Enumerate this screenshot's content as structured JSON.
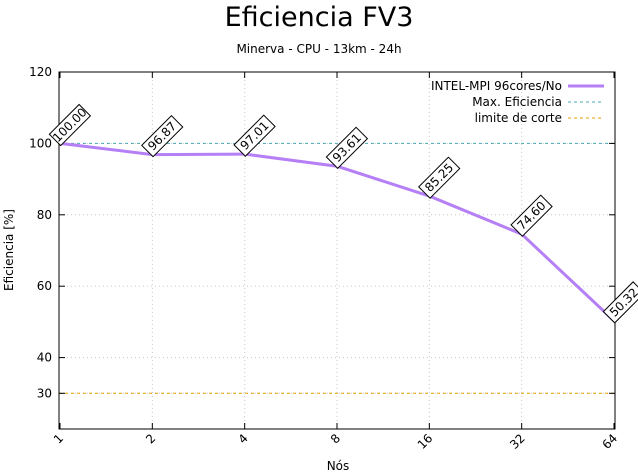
{
  "chart_data": {
    "type": "line",
    "title": "Eficiencia FV3",
    "subtitle": "Minerva - CPU - 13km - 24h",
    "xlabel": "Nós",
    "ylabel": "Eficiencia [%]",
    "categories": [
      "1",
      "2",
      "4",
      "8",
      "16",
      "32",
      "64"
    ],
    "ylim": [
      20,
      120
    ],
    "yticks": [
      30,
      40,
      60,
      80,
      100,
      120
    ],
    "grid": true,
    "legend_position": "top-right",
    "series": [
      {
        "name": "INTEL-MPI 96cores/No",
        "color": "#b57ff5",
        "values": [
          100.0,
          96.87,
          97.01,
          93.61,
          85.25,
          74.6,
          50.32
        ],
        "labels": [
          "100.00",
          "96.87",
          "97.01",
          "93.61",
          "85.25",
          "74.60",
          "50.32"
        ]
      }
    ],
    "reference_lines": [
      {
        "name": "Max. Eficiencia",
        "value": 100,
        "color": "#4da6b3"
      },
      {
        "name": "limite de corte",
        "value": 30,
        "color": "#e0a000"
      }
    ]
  }
}
